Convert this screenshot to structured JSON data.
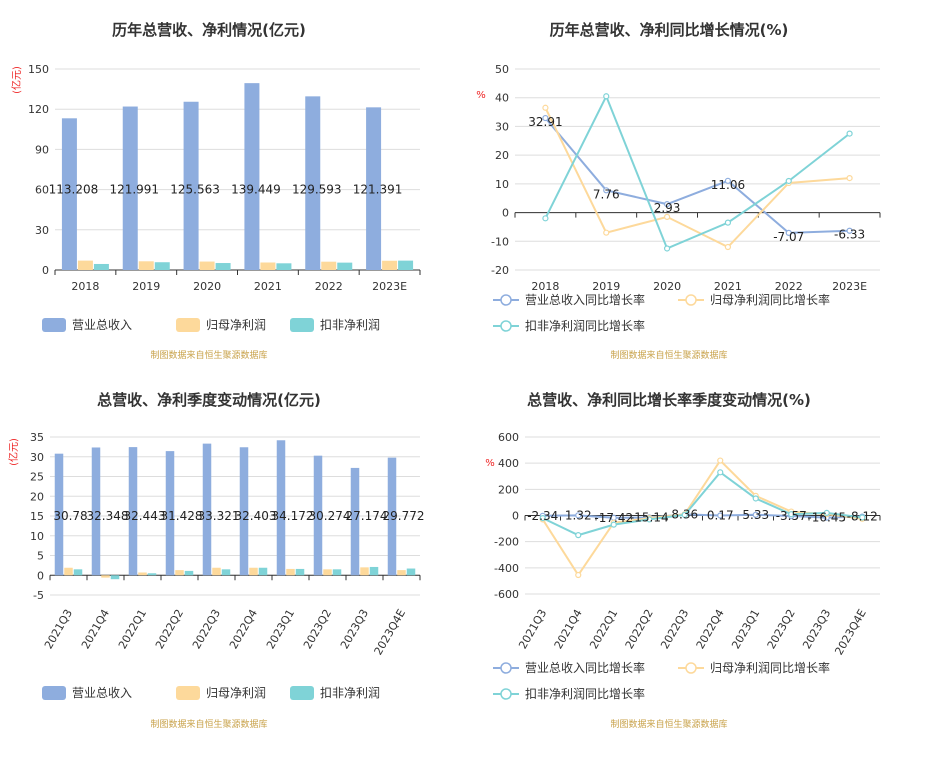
{
  "colors": {
    "revenue": "#8eadde",
    "net_profit": "#fdd99b",
    "deducted_profit": "#7fd3d7"
  },
  "source_note": "制图数据来自恒生聚源数据库",
  "legend_bar": [
    "营业总收入",
    "归母净利润",
    "扣非净利润"
  ],
  "legend_line": [
    "营业总收入同比增长率",
    "归母净利润同比增长率",
    "扣非净利润同比增长率"
  ],
  "chart_data": [
    {
      "type": "bar",
      "title": "历年总营收、净利情况(亿元)",
      "unit": "(亿元)",
      "categories": [
        "2018",
        "2019",
        "2020",
        "2021",
        "2022",
        "2023E"
      ],
      "ylim": [
        0,
        150
      ],
      "yticks": [
        0,
        30,
        60,
        90,
        120,
        150
      ],
      "series": [
        {
          "name": "营业总收入",
          "values": [
            113.208,
            121.991,
            125.563,
            139.449,
            129.593,
            121.391
          ]
        },
        {
          "name": "归母净利润",
          "values": [
            7.0,
            6.5,
            6.3,
            5.6,
            6.2,
            6.9
          ]
        },
        {
          "name": "扣非净利润",
          "values": [
            4.5,
            5.8,
            5.2,
            5.0,
            5.5,
            7.0
          ]
        }
      ],
      "data_labels": [
        "113.208",
        "121.991",
        "125.563",
        "139.449",
        "129.593",
        "121.391"
      ],
      "legend_position": "bottom-left",
      "grid": true
    },
    {
      "type": "line",
      "title": "历年总营收、净利同比增长情况(%)",
      "unit": "%",
      "categories": [
        "2018",
        "2019",
        "2020",
        "2021",
        "2022",
        "2023E"
      ],
      "ylim": [
        -20,
        50
      ],
      "yticks": [
        -20,
        -10,
        0,
        10,
        20,
        30,
        40,
        50
      ],
      "series": [
        {
          "name": "营业总收入同比增长率",
          "values": [
            32.91,
            7.76,
            2.93,
            11.06,
            -7.07,
            -6.33
          ]
        },
        {
          "name": "归母净利润同比增长率",
          "values": [
            36.5,
            -7.0,
            -1.5,
            -12.0,
            10.3,
            12.0
          ]
        },
        {
          "name": "扣非净利润同比增长率",
          "values": [
            -2.0,
            40.5,
            -12.5,
            -3.5,
            11.0,
            27.5
          ]
        }
      ],
      "data_labels": [
        "32.91",
        "7.76",
        "2.93",
        "11.06",
        "-7.07",
        "-6.33"
      ],
      "legend_position": "bottom-left",
      "grid": true
    },
    {
      "type": "bar",
      "title": "总营收、净利季度变动情况(亿元)",
      "unit": "(亿元)",
      "categories": [
        "2021Q3",
        "2021Q4",
        "2022Q1",
        "2022Q2",
        "2022Q3",
        "2022Q4",
        "2023Q1",
        "2023Q2",
        "2023Q3",
        "2023Q4E"
      ],
      "ylim": [
        -5,
        35
      ],
      "yticks": [
        -5,
        0,
        5,
        10,
        15,
        20,
        25,
        30,
        35
      ],
      "series": [
        {
          "name": "营业总收入",
          "values": [
            30.78,
            32.348,
            32.443,
            31.428,
            33.321,
            32.403,
            34.172,
            30.274,
            27.174,
            29.772
          ]
        },
        {
          "name": "归母净利润",
          "values": [
            1.9,
            -0.6,
            0.7,
            1.3,
            1.9,
            1.9,
            1.6,
            1.5,
            2.0,
            1.3
          ]
        },
        {
          "name": "扣非净利润",
          "values": [
            1.5,
            -1.0,
            0.5,
            1.1,
            1.5,
            1.9,
            1.6,
            1.5,
            2.1,
            1.7
          ]
        }
      ],
      "data_labels": [
        "30.78",
        "32.348",
        "32.443",
        "31.428",
        "33.321",
        "32.403",
        "34.172",
        "30.274",
        "27.174",
        "29.772"
      ],
      "legend_position": "bottom-left",
      "grid": true
    },
    {
      "type": "line",
      "title": "总营收、净利同比增长率季度变动情况(%)",
      "unit": "%",
      "categories": [
        "2021Q3",
        "2021Q4",
        "2022Q1",
        "2022Q2",
        "2022Q3",
        "2022Q4",
        "2023Q1",
        "2023Q2",
        "2023Q3",
        "2023Q4E"
      ],
      "ylim": [
        -600,
        600
      ],
      "yticks": [
        -600,
        -400,
        -200,
        0,
        200,
        400,
        600
      ],
      "series": [
        {
          "name": "营业总收入同比增长率",
          "values": [
            -2.34,
            1.32,
            -17.42,
            -15.14,
            8.36,
            0.17,
            5.33,
            -3.57,
            -16.45,
            -8.12
          ]
        },
        {
          "name": "归母净利润同比增长率",
          "values": [
            -30,
            -455,
            -55,
            -20,
            10,
            420,
            150,
            30,
            10,
            -25
          ]
        },
        {
          "name": "扣非净利润同比增长率",
          "values": [
            -20,
            -150,
            -70,
            -30,
            5,
            330,
            130,
            10,
            20,
            -15
          ]
        }
      ],
      "data_labels": [
        "-2.34",
        "1.32",
        "-17.42",
        "-15.14",
        "8.36",
        "0.17",
        "5.33",
        "-3.57",
        "-16.45",
        "-8.12"
      ],
      "legend_position": "bottom-left",
      "grid": true
    }
  ]
}
